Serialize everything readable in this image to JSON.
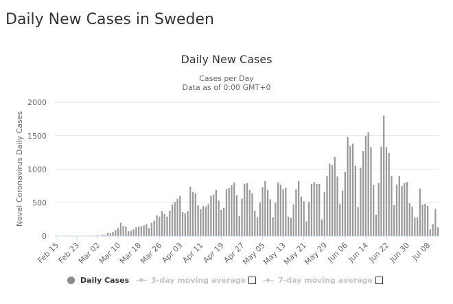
{
  "page": {
    "heading": "Daily New Cases in Sweden"
  },
  "colors": {
    "bar": "#999999",
    "grid": "#e6e6e6",
    "text": "#333333",
    "axis_text": "#666666"
  },
  "chart_data": {
    "type": "bar",
    "title": "Daily New Cases",
    "subtitle_line1": "Cases per Day",
    "subtitle_line2": "Data as of 0:00 GMT+0",
    "ylabel": "Novel Coronavirus Daily Cases",
    "xlabel": "",
    "ylim": [
      0,
      2000
    ],
    "y_ticks": [
      "0",
      "500",
      "1000",
      "1500",
      "2000"
    ],
    "x_tick_labels": [
      "Feb 15",
      "Feb 23",
      "Mar 02",
      "Mar 10",
      "Mar 18",
      "Mar 26",
      "Apr 03",
      "Apr 11",
      "Apr 19",
      "Apr 27",
      "May 05",
      "May 13",
      "May 21",
      "May 29",
      "Jun 06",
      "Jun 14",
      "Jun 22",
      "Jun 30",
      "Jul 08"
    ],
    "start_date": "Feb 15",
    "label_step_days": 8,
    "grid": true,
    "series": [
      {
        "name": "Daily Cases",
        "values": [
          0,
          0,
          0,
          0,
          0,
          0,
          0,
          0,
          0,
          0,
          0,
          0,
          0,
          0,
          0,
          0,
          10,
          5,
          20,
          15,
          50,
          40,
          60,
          90,
          120,
          200,
          150,
          140,
          70,
          80,
          100,
          130,
          140,
          145,
          160,
          180,
          120,
          200,
          230,
          310,
          290,
          370,
          330,
          290,
          380,
          470,
          510,
          560,
          600,
          360,
          340,
          370,
          740,
          660,
          640,
          460,
          400,
          450,
          440,
          480,
          600,
          620,
          690,
          530,
          390,
          420,
          700,
          720,
          760,
          800,
          610,
          300,
          560,
          780,
          790,
          690,
          640,
          380,
          280,
          500,
          730,
          820,
          690,
          550,
          280,
          500,
          800,
          770,
          700,
          720,
          290,
          270,
          470,
          700,
          820,
          590,
          520,
          220,
          510,
          780,
          810,
          780,
          780,
          250,
          660,
          900,
          1080,
          1060,
          1180,
          890,
          480,
          680,
          960,
          1480,
          1350,
          1380,
          1050,
          430,
          1020,
          1270,
          1500,
          1550,
          1330,
          760,
          320,
          790,
          1340,
          1800,
          1330,
          1240,
          900,
          460,
          770,
          900,
          750,
          790,
          810,
          490,
          440,
          280,
          280,
          710,
          470,
          480,
          450,
          100,
          180,
          410,
          130
        ]
      }
    ],
    "legend": {
      "placement": "bottom",
      "items": [
        {
          "label": "Daily Cases",
          "state": "visible"
        },
        {
          "label": "3-day moving average",
          "state": "hidden"
        },
        {
          "label": "7-day moving average",
          "state": "hidden"
        }
      ]
    }
  }
}
